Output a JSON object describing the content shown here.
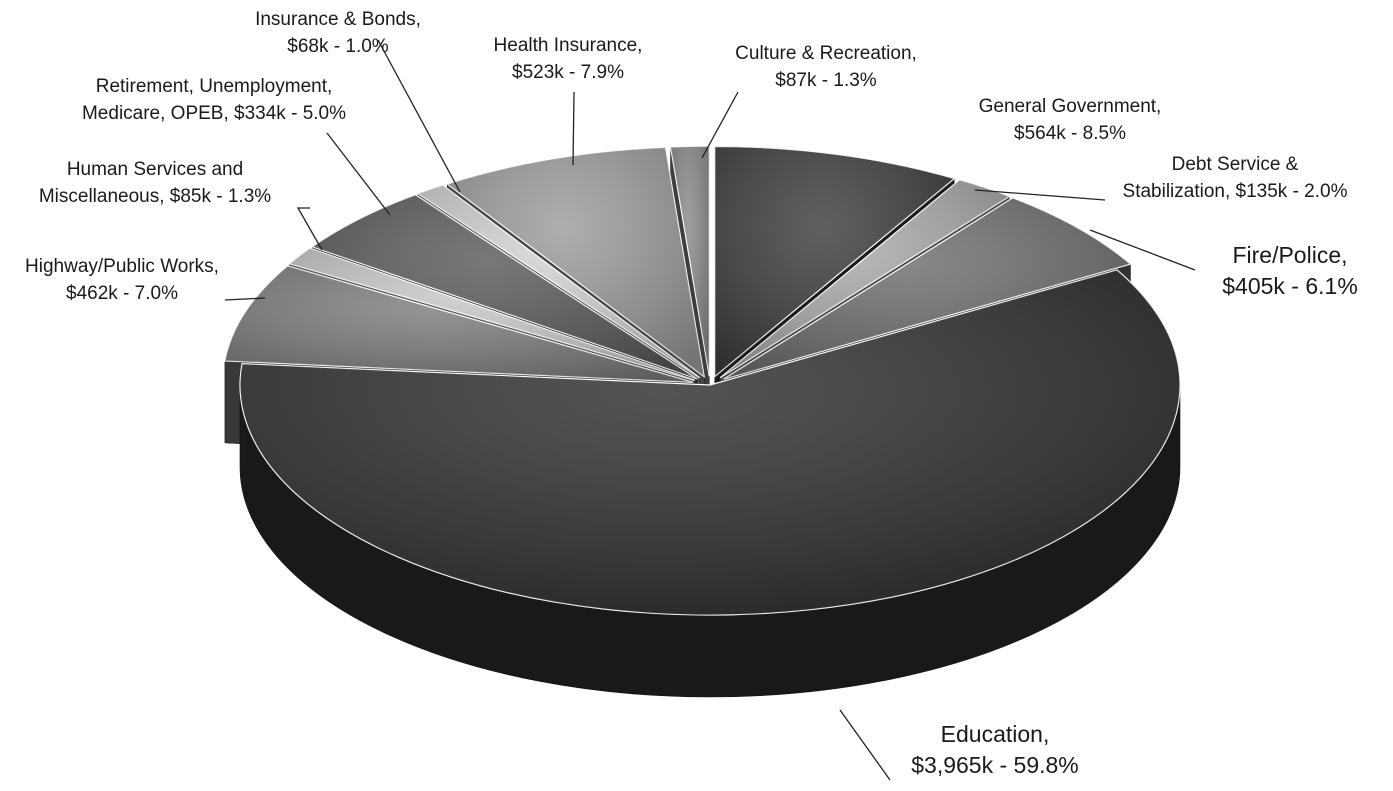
{
  "chart_data": {
    "type": "pie",
    "style": "3d-exploded",
    "title": "",
    "currency_unit": "$ thousands",
    "slices": [
      {
        "name": "General Government",
        "value": 564,
        "percent": 8.5,
        "label_line1": "General Government,",
        "label_line2": "$564k - 8.5%",
        "color": "#3c3c3c"
      },
      {
        "name": "Debt Service & Stabilization",
        "value": 135,
        "percent": 2.0,
        "label_line1": "Debt Service &",
        "label_line2": "Stabilization,  $135k - 2.0%",
        "color": "#a9a9a9"
      },
      {
        "name": "Fire/Police",
        "value": 405,
        "percent": 6.1,
        "label_line1": "Fire/Police,",
        "label_line2": "$405k  - 6.1%",
        "color": "#6e6e6e"
      },
      {
        "name": "Education",
        "value": 3965,
        "percent": 59.8,
        "label_line1": "Education,",
        "label_line2": "$3,965k  - 59.8%",
        "color": "#2e2e2e"
      },
      {
        "name": "Highway/Public Works",
        "value": 462,
        "percent": 7.0,
        "label_line1": "Highway/Public Works,",
        "label_line2": "$462k  - 7.0%",
        "color": "#7d7d7d"
      },
      {
        "name": "Human Services and Miscellaneous",
        "value": 85,
        "percent": 1.3,
        "label_line1": "Human Services and",
        "label_line2": "Miscellaneous,  $85k - 1.3%",
        "color": "#c9c9c9"
      },
      {
        "name": "Retirement, Unemployment, Medicare, OPEB",
        "value": 334,
        "percent": 5.0,
        "label_line1": "Retirement, Unemployment,",
        "label_line2": "Medicare, OPEB, $334k - 5.0%",
        "color": "#5a5a5a"
      },
      {
        "name": "Insurance & Bonds",
        "value": 68,
        "percent": 1.0,
        "label_line1": "Insurance & Bonds,",
        "label_line2": "$68k - 1.0%",
        "color": "#d2d2d2"
      },
      {
        "name": "Health Insurance",
        "value": 523,
        "percent": 7.9,
        "label_line1": "Health Insurance,",
        "label_line2": "$523k  - 7.9%",
        "color": "#9c9c9c"
      },
      {
        "name": "Culture & Recreation",
        "value": 87,
        "percent": 1.3,
        "label_line1": "Culture & Recreation,",
        "label_line2": "$87k  - 1.3%",
        "color": "#8a8a8a"
      }
    ]
  }
}
